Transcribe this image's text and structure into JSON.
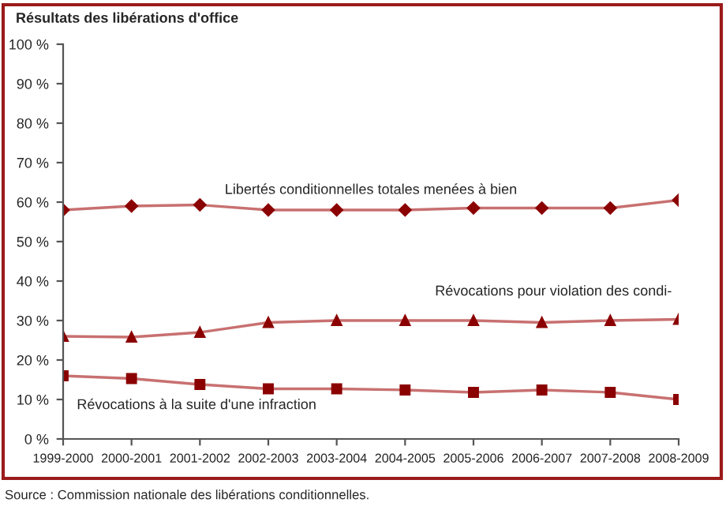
{
  "chart_data": {
    "type": "line",
    "title": "Résultats des libérations d'office",
    "categories": [
      "1999-2000",
      "2000-2001",
      "2001-2002",
      "2002-2003",
      "2003-2004",
      "2004-2005",
      "2005-2006",
      "2006-2007",
      "2007-2008",
      "2008-2009"
    ],
    "series": [
      {
        "name": "Libertés conditionnelles totales menées à bien",
        "color": "#8b0000",
        "marker": "diamond",
        "values": [
          58,
          59,
          59.3,
          58,
          58,
          58,
          58.5,
          58.5,
          58.5,
          60.5
        ]
      },
      {
        "name": "Révocations pour violation des condi-",
        "color": "#8b0000",
        "marker": "triangle",
        "values": [
          26,
          25.8,
          27,
          29.5,
          30,
          30,
          30,
          29.5,
          30,
          30.3
        ]
      },
      {
        "name": "Révocations à la suite d'une infraction",
        "color": "#8b0000",
        "marker": "square",
        "values": [
          16,
          15.3,
          13.8,
          12.7,
          12.7,
          12.4,
          11.8,
          12.4,
          11.8,
          10
        ]
      }
    ],
    "ylim": [
      0,
      100
    ],
    "yticks": [
      {
        "value": 0,
        "label": "0 %"
      },
      {
        "value": 10,
        "label": "10 %"
      },
      {
        "value": 20,
        "label": "20 %"
      },
      {
        "value": 30,
        "label": "30 %"
      },
      {
        "value": 40,
        "label": "40 %"
      },
      {
        "value": 50,
        "label": "50 %"
      },
      {
        "value": 60,
        "label": "60 %"
      },
      {
        "value": 70,
        "label": "70 %"
      },
      {
        "value": 80,
        "label": "80 %"
      },
      {
        "value": 90,
        "label": "90 %"
      },
      {
        "value": 100,
        "label": "100 %"
      }
    ],
    "grid": false,
    "legend": false,
    "line_style": "solid",
    "annotations": [
      "Source : Commission nationale des libérations conditionnelles."
    ]
  }
}
